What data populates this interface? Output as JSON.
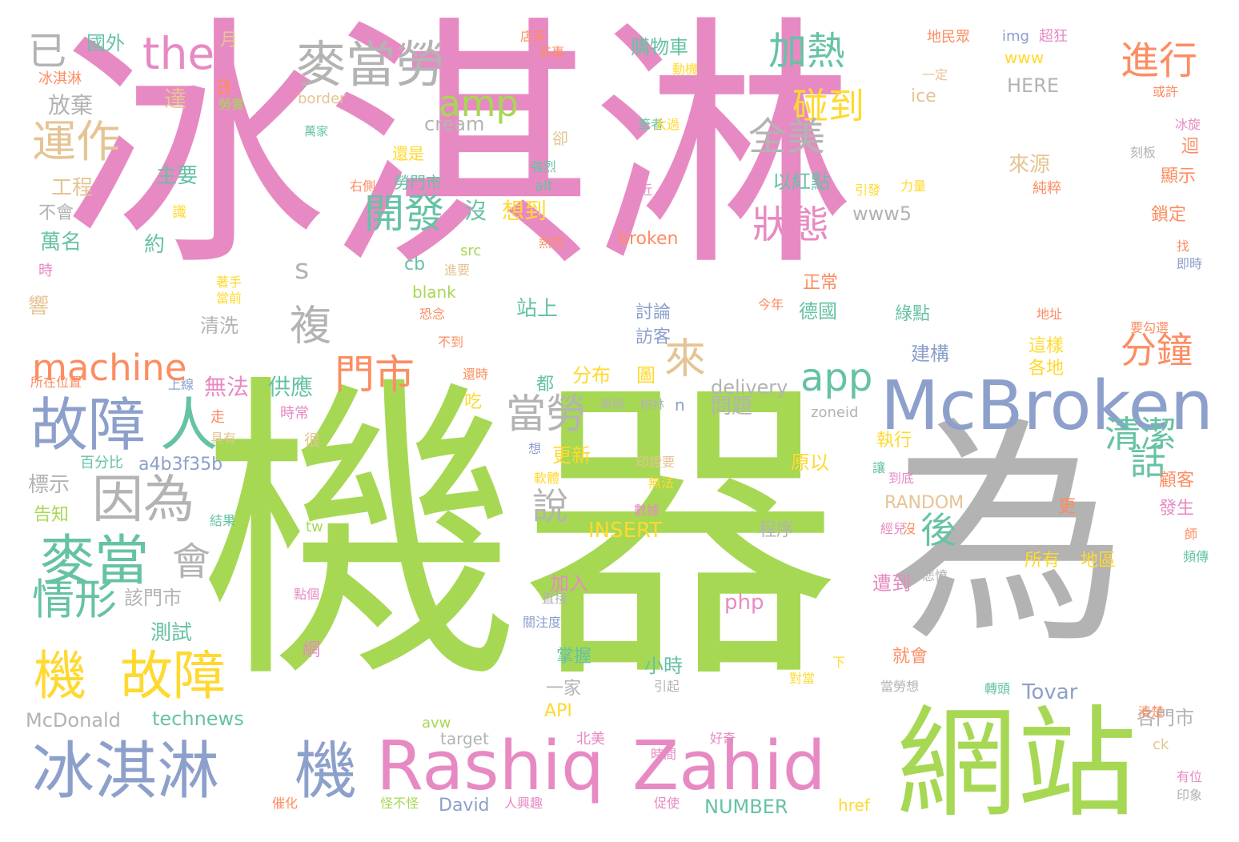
{
  "words": [
    "冰淇淋",
    "機器",
    "為",
    "網站",
    "McBroken",
    "Rashiq",
    "Zahid",
    "冰淇淋",
    "機",
    "機",
    "故障",
    "故障",
    "人",
    "麥當",
    "麥當勞",
    "因為",
    "運作",
    "情形",
    "會",
    "已",
    "the",
    "amp",
    "app",
    "machine",
    "門市",
    "開發",
    "狀態",
    "加熱",
    "碰到",
    "進行",
    "全美",
    "分鐘",
    "清潔",
    "當勞",
    "來",
    "後",
    "說",
    "話",
    "複",
    "s",
    "a",
    "放棄",
    "工程",
    "主要",
    "萬名",
    "國外",
    "達",
    "約",
    "不會",
    "月",
    "勞實",
    "識",
    "著手",
    "當前",
    "時",
    "響",
    "標示",
    "告知",
    "百分比",
    "所在位置",
    "上線",
    "結果",
    "走",
    "具有",
    "時常",
    "清洗",
    "該門市",
    "測試",
    "網",
    "無法",
    "供應",
    "問題",
    "delivery",
    "zoneid",
    "McDonald",
    "technews",
    "David",
    "NUMBER",
    "href",
    "a4b3f35b",
    "php",
    "Tovar",
    "API",
    "avw",
    "target",
    "ck",
    "RANDOM",
    "INSERT",
    "cream",
    "ice",
    "border",
    "www",
    "HERE",
    "img",
    "超狂",
    "地民眾",
    "www5",
    "broken",
    "blank",
    "src",
    "alt",
    "tw",
    "n",
    "cb",
    "購物車",
    "動機",
    "店家",
    "其事",
    "萬家",
    "筆者",
    "太過",
    "還是",
    "勞門市",
    "卻",
    "強烈",
    "右側",
    "最近",
    "以紅點",
    "沒",
    "想到",
    "熱烈",
    "進要",
    "恐念",
    "不到",
    "站上",
    "討論",
    "訪客",
    "還時",
    "分布",
    "圖",
    "吃",
    "舉例",
    "柏林",
    "都",
    "更新",
    "很",
    "想",
    "印證要",
    "無法",
    "原以",
    "執行",
    "讓",
    "程序",
    "加入",
    "遭到",
    "掌握",
    "小時",
    "引起",
    "一家",
    "對當",
    "下",
    "各門市",
    "清楚",
    "北美",
    "好奇",
    "時間",
    "怪不怪",
    "人興趣",
    "促使",
    "催化",
    "印象",
    "有位",
    "所有",
    "地區",
    "顧客",
    "發生",
    "頻傳",
    "師",
    "就會",
    "當勞想",
    "轉頭",
    "經兒",
    "悲憤",
    "更",
    "到底",
    "建構",
    "這樣",
    "各地",
    "綠點",
    "德國",
    "正常",
    "今年",
    "地址",
    "要勾選",
    "即時",
    "找",
    "鎖定",
    "顯示",
    "迴",
    "冰旋",
    "刻板",
    "或許",
    "一定",
    "純粹",
    "引發",
    "力量",
    "來源",
    "關注度",
    "直接",
    "數據",
    "軟體",
    "點個",
    "沒",
    "冰淇淋"
  ],
  "colors": {
    "pink": "#e78ac3",
    "green": "#a6d854",
    "gray": "#b3b3b3",
    "blue": "#8da0cb",
    "yellow": "#ffd92f",
    "orange": "#fc8d62",
    "tan": "#e5c494",
    "teal": "#66c2a5"
  }
}
